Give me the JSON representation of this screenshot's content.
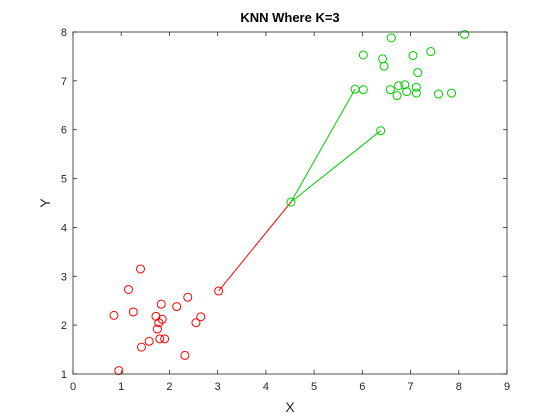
{
  "chart_data": {
    "type": "scatter",
    "title": "KNN Where K=3",
    "xlabel": "X",
    "ylabel": "Y",
    "xlim": [
      0,
      9
    ],
    "ylim": [
      1,
      8
    ],
    "xticks": [
      0,
      1,
      2,
      3,
      4,
      5,
      6,
      7,
      8,
      9
    ],
    "yticks": [
      1,
      2,
      3,
      4,
      5,
      6,
      7,
      8
    ],
    "grid": false,
    "series": [
      {
        "color": "#ff0000",
        "marker": "circle",
        "points": [
          [
            0.85,
            2.2
          ],
          [
            0.95,
            1.07
          ],
          [
            1.15,
            2.73
          ],
          [
            1.25,
            2.27
          ],
          [
            1.4,
            3.15
          ],
          [
            1.42,
            1.55
          ],
          [
            1.58,
            1.67
          ],
          [
            1.72,
            2.18
          ],
          [
            1.75,
            1.92
          ],
          [
            1.78,
            2.05
          ],
          [
            1.8,
            1.72
          ],
          [
            1.83,
            2.43
          ],
          [
            1.85,
            2.12
          ],
          [
            1.9,
            1.72
          ],
          [
            2.15,
            2.38
          ],
          [
            2.32,
            1.38
          ],
          [
            2.38,
            2.57
          ],
          [
            2.55,
            2.05
          ],
          [
            2.65,
            2.17
          ],
          [
            3.02,
            2.7
          ]
        ]
      },
      {
        "color": "#00cc00",
        "marker": "circle",
        "points": [
          [
            5.85,
            6.83
          ],
          [
            6.02,
            7.53
          ],
          [
            6.02,
            6.82
          ],
          [
            6.38,
            5.98
          ],
          [
            6.42,
            7.45
          ],
          [
            6.45,
            7.3
          ],
          [
            6.58,
            6.82
          ],
          [
            6.6,
            7.88
          ],
          [
            6.72,
            6.7
          ],
          [
            6.75,
            6.9
          ],
          [
            6.88,
            6.92
          ],
          [
            6.92,
            6.78
          ],
          [
            7.05,
            7.52
          ],
          [
            7.12,
            6.87
          ],
          [
            7.12,
            6.75
          ],
          [
            7.15,
            7.17
          ],
          [
            7.42,
            7.6
          ],
          [
            7.58,
            6.73
          ],
          [
            7.85,
            6.75
          ],
          [
            8.12,
            7.95
          ]
        ]
      },
      {
        "color": "#00cc00",
        "marker": "circle",
        "points": [
          [
            4.52,
            4.52
          ]
        ]
      }
    ],
    "lines": [
      {
        "from": [
          4.52,
          4.52
        ],
        "to": [
          3.02,
          2.7
        ],
        "color": "#ff0000"
      },
      {
        "from": [
          4.52,
          4.52
        ],
        "to": [
          5.85,
          6.83
        ],
        "color": "#00cc00"
      },
      {
        "from": [
          4.52,
          4.52
        ],
        "to": [
          6.38,
          5.98
        ],
        "color": "#00cc00"
      }
    ]
  }
}
